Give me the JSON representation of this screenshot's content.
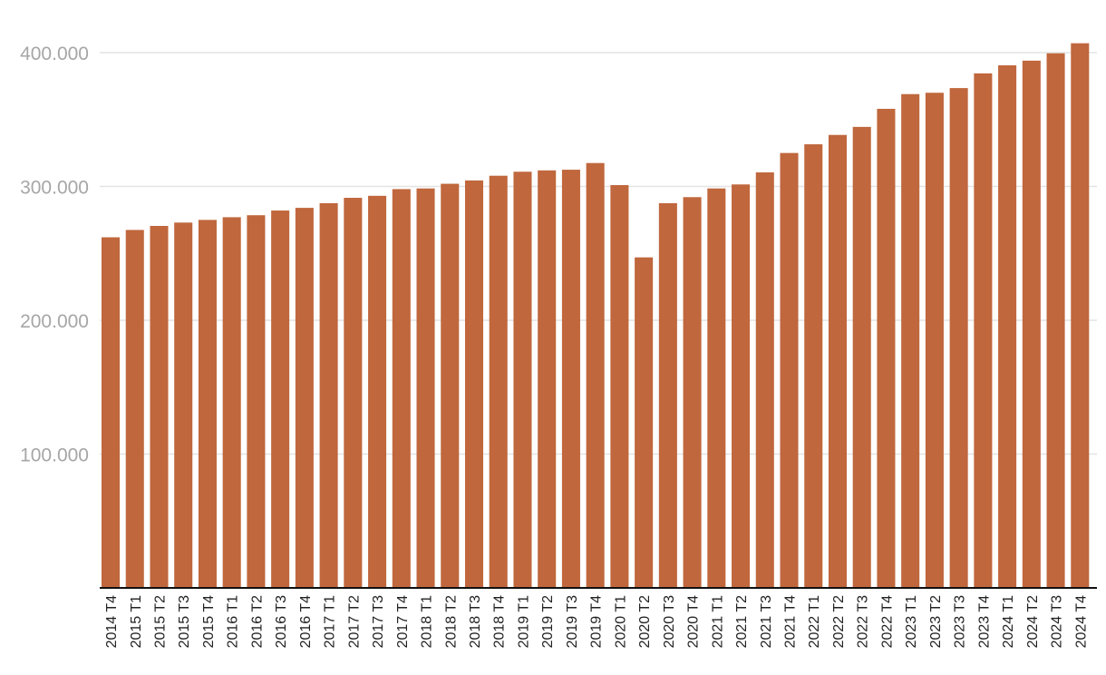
{
  "chart_data": {
    "type": "bar",
    "categories": [
      "2014 T4",
      "2015 T1",
      "2015 T2",
      "2015 T3",
      "2015 T4",
      "2016 T1",
      "2016 T2",
      "2016 T3",
      "2016 T4",
      "2017 T1",
      "2017 T2",
      "2017 T3",
      "2017 T4",
      "2018 T1",
      "2018 T2",
      "2018 T3",
      "2018 T4",
      "2019 T1",
      "2019 T2",
      "2019 T3",
      "2019 T4",
      "2020 T1",
      "2020 T2",
      "2020 T3",
      "2020 T4",
      "2021 T1",
      "2021 T2",
      "2021 T3",
      "2021 T4",
      "2022 T1",
      "2022 T2",
      "2022 T3",
      "2022 T4",
      "2023 T1",
      "2023 T2",
      "2023 T3",
      "2023 T4",
      "2024 T1",
      "2024 T2",
      "2024 T3",
      "2024 T4"
    ],
    "values": [
      262000,
      267500,
      270500,
      273000,
      275000,
      277000,
      278500,
      282000,
      284000,
      287500,
      291500,
      293000,
      298000,
      298500,
      302000,
      304500,
      308000,
      311000,
      312000,
      312500,
      317500,
      301000,
      247000,
      287500,
      292000,
      298500,
      301500,
      310500,
      325000,
      331500,
      338500,
      344500,
      358000,
      369000,
      370000,
      373500,
      384500,
      390500,
      394000,
      399500,
      407000
    ],
    "yticks": [
      "100.000",
      "200.000",
      "300.000",
      "400.000"
    ],
    "ytick_values": [
      100000,
      200000,
      300000,
      400000
    ],
    "ylim": [
      0,
      410000
    ],
    "bar_color": "#c0673d",
    "grid": true,
    "title": "",
    "xlabel": "",
    "ylabel": ""
  }
}
